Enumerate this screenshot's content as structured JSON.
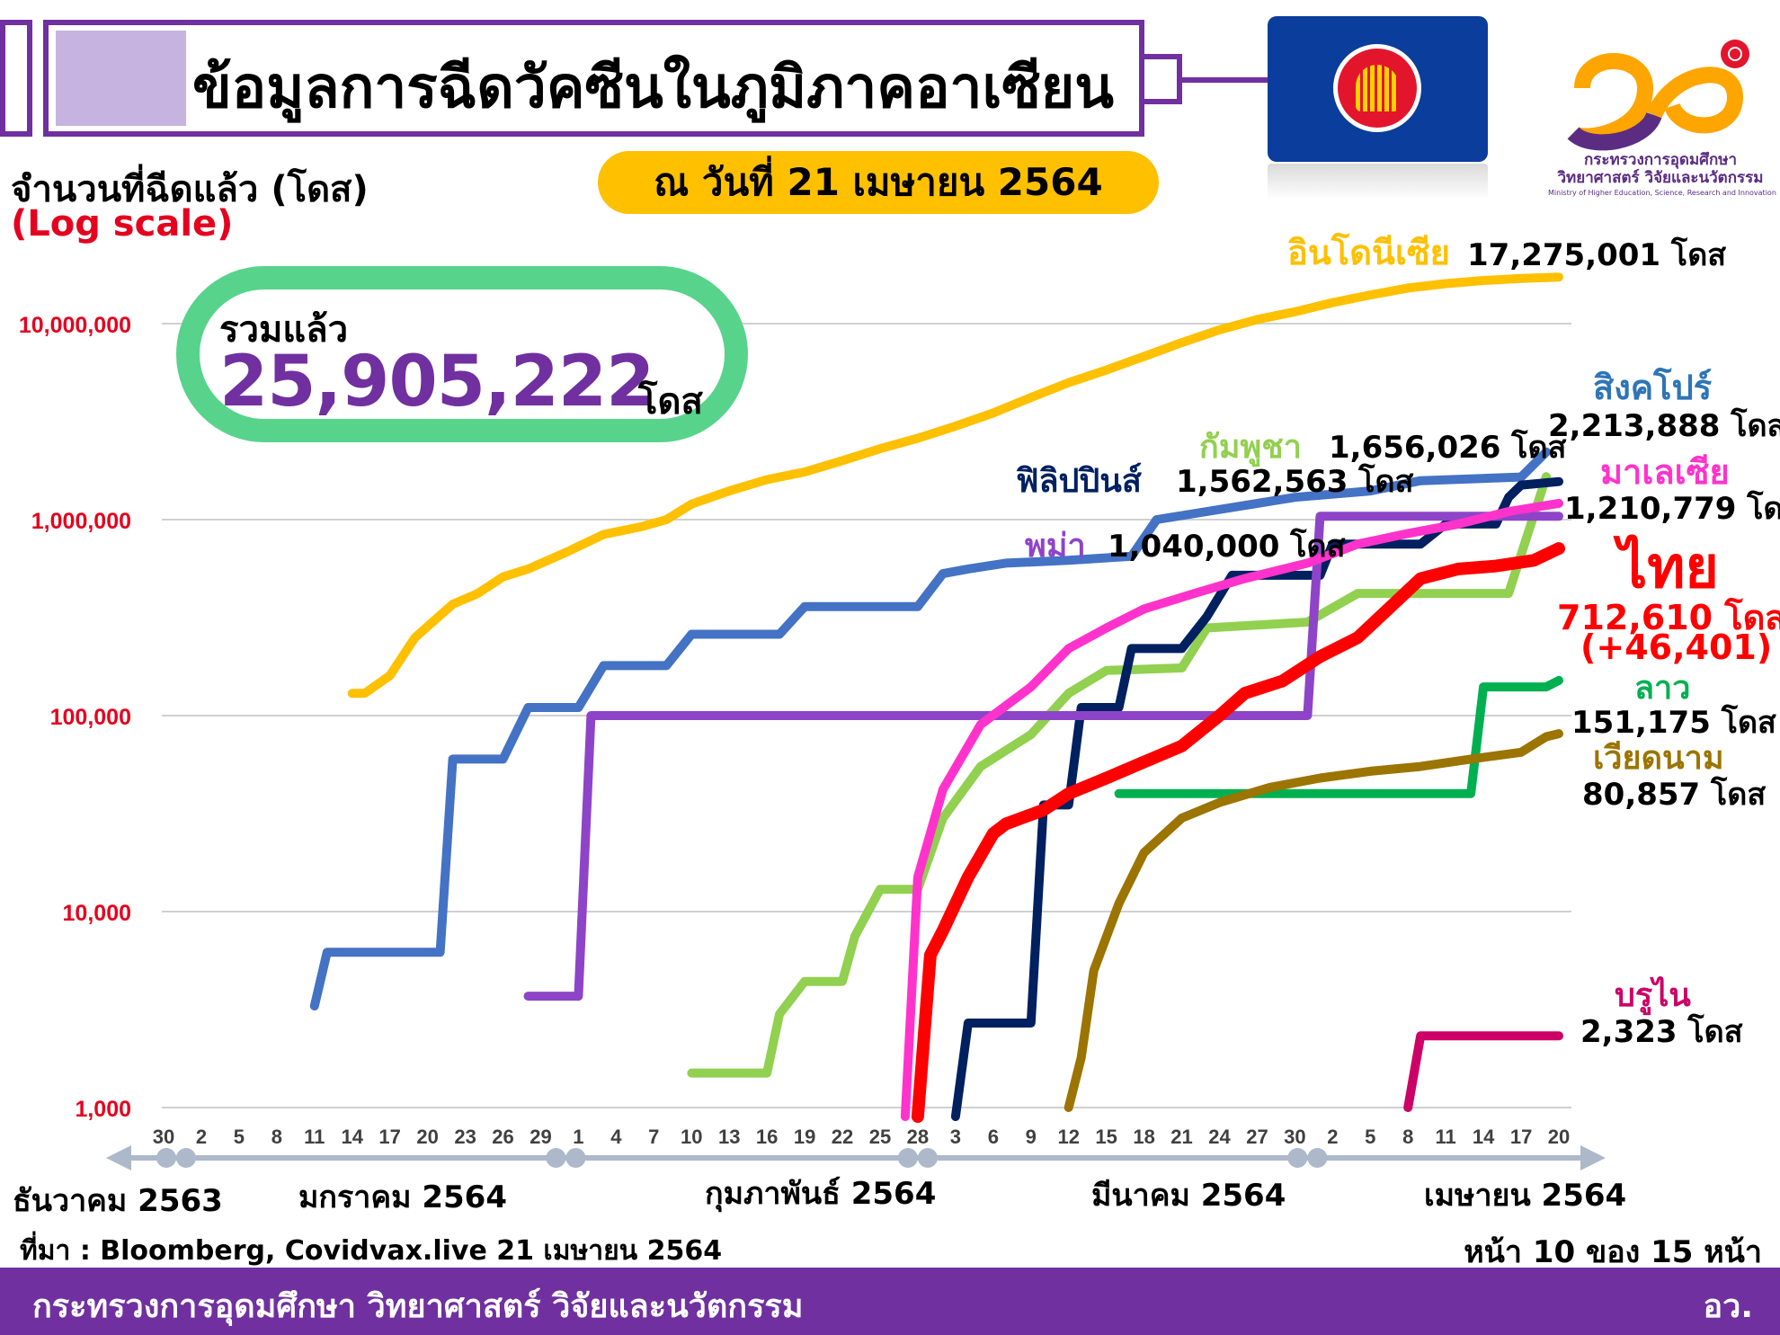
{
  "header": {
    "title": "ข้อมูลการฉีดวัคซีนในภูมิภาคอาเซียน",
    "date": "ณ วันที่ 21 เมษายน 2564"
  },
  "ylabel": "จำนวนที่ฉีดแล้ว (โดส)",
  "ylabel_scale": "(Log scale)",
  "total": {
    "label": "รวมแล้ว",
    "value": "25,905,222",
    "unit": "โดส"
  },
  "logo": {
    "ministry_th_1": "กระทรวงการอุดมศึกษา",
    "ministry_th_2": "วิทยาศาสตร์ วิจัยและนวัตกรรม",
    "ministry_en": "Ministry of Higher Education, Science, Research and Innovation"
  },
  "colors": {
    "indonesia": "#ffc000",
    "singapore": "#4472c4",
    "cambodia": "#92d050",
    "philippines": "#002060",
    "myanmar": "#8e44c8",
    "malaysia": "#ff33cc",
    "thailand": "#ff0000",
    "laos": "#00b050",
    "vietnam": "#9c7400",
    "brunei": "#cc0066"
  },
  "chart_data": {
    "type": "line",
    "y_scale": "log",
    "ylim": [
      1000,
      20000000
    ],
    "y_ticks": [
      1000,
      10000,
      100000,
      1000000,
      10000000
    ],
    "y_tick_labels": [
      "1,000",
      "10,000",
      "100,000",
      "1,000,000",
      "10,000,000"
    ],
    "x_start": "2020-12-30",
    "x_end": "2021-04-21",
    "x_ticks": [
      {
        "date": "2020-12-30",
        "label": "30"
      },
      {
        "date": "2021-01-02",
        "label": "2"
      },
      {
        "date": "2021-01-05",
        "label": "5"
      },
      {
        "date": "2021-01-08",
        "label": "8"
      },
      {
        "date": "2021-01-11",
        "label": "11"
      },
      {
        "date": "2021-01-14",
        "label": "14"
      },
      {
        "date": "2021-01-17",
        "label": "17"
      },
      {
        "date": "2021-01-20",
        "label": "20"
      },
      {
        "date": "2021-01-23",
        "label": "23"
      },
      {
        "date": "2021-01-26",
        "label": "26"
      },
      {
        "date": "2021-01-29",
        "label": "29"
      },
      {
        "date": "2021-02-01",
        "label": "1"
      },
      {
        "date": "2021-02-04",
        "label": "4"
      },
      {
        "date": "2021-02-07",
        "label": "7"
      },
      {
        "date": "2021-02-10",
        "label": "10"
      },
      {
        "date": "2021-02-13",
        "label": "13"
      },
      {
        "date": "2021-02-16",
        "label": "16"
      },
      {
        "date": "2021-02-19",
        "label": "19"
      },
      {
        "date": "2021-02-22",
        "label": "22"
      },
      {
        "date": "2021-02-25",
        "label": "25"
      },
      {
        "date": "2021-02-28",
        "label": "28"
      },
      {
        "date": "2021-03-03",
        "label": "3"
      },
      {
        "date": "2021-03-06",
        "label": "6"
      },
      {
        "date": "2021-03-09",
        "label": "9"
      },
      {
        "date": "2021-03-12",
        "label": "12"
      },
      {
        "date": "2021-03-15",
        "label": "15"
      },
      {
        "date": "2021-03-18",
        "label": "18"
      },
      {
        "date": "2021-03-21",
        "label": "21"
      },
      {
        "date": "2021-03-24",
        "label": "24"
      },
      {
        "date": "2021-03-27",
        "label": "27"
      },
      {
        "date": "2021-03-30",
        "label": "30"
      },
      {
        "date": "2021-04-02",
        "label": "2"
      },
      {
        "date": "2021-04-05",
        "label": "5"
      },
      {
        "date": "2021-04-08",
        "label": "8"
      },
      {
        "date": "2021-04-11",
        "label": "11"
      },
      {
        "date": "2021-04-14",
        "label": "14"
      },
      {
        "date": "2021-04-17",
        "label": "17"
      },
      {
        "date": "2021-04-20",
        "label": "20"
      }
    ],
    "months": [
      {
        "label": "ธันวาคม 2563",
        "date": "2020-12-30"
      },
      {
        "label": "มกราคม 2564",
        "date": "2021-01-16"
      },
      {
        "label": "กุมภาพันธ์ 2564",
        "date": "2021-02-14"
      },
      {
        "label": "มีนาคม 2564",
        "date": "2021-03-18"
      },
      {
        "label": "เมษายน 2564",
        "date": "2021-04-15"
      }
    ],
    "month_boundaries": [
      "2020-12-31",
      "2021-01-31",
      "2021-02-28",
      "2021-03-31"
    ],
    "series": [
      {
        "key": "indonesia",
        "name": "อินโดนีเซีย",
        "value_label": "17,275,001 โดส",
        "final": 17275001,
        "points": [
          [
            "2021-01-14",
            130000
          ],
          [
            "2021-01-15",
            130000
          ],
          [
            "2021-01-17",
            160000
          ],
          [
            "2021-01-19",
            250000
          ],
          [
            "2021-01-22",
            370000
          ],
          [
            "2021-01-24",
            420000
          ],
          [
            "2021-01-26",
            510000
          ],
          [
            "2021-01-28",
            560000
          ],
          [
            "2021-01-31",
            680000
          ],
          [
            "2021-02-03",
            840000
          ],
          [
            "2021-02-06",
            920000
          ],
          [
            "2021-02-08",
            1000000
          ],
          [
            "2021-02-10",
            1200000
          ],
          [
            "2021-02-13",
            1400000
          ],
          [
            "2021-02-16",
            1600000
          ],
          [
            "2021-02-19",
            1750000
          ],
          [
            "2021-02-22",
            2000000
          ],
          [
            "2021-02-25",
            2300000
          ],
          [
            "2021-02-28",
            2600000
          ],
          [
            "2021-03-03",
            3000000
          ],
          [
            "2021-03-06",
            3500000
          ],
          [
            "2021-03-09",
            4200000
          ],
          [
            "2021-03-12",
            5000000
          ],
          [
            "2021-03-15",
            5800000
          ],
          [
            "2021-03-18",
            6800000
          ],
          [
            "2021-03-21",
            8000000
          ],
          [
            "2021-03-24",
            9300000
          ],
          [
            "2021-03-27",
            10500000
          ],
          [
            "2021-03-30",
            11500000
          ],
          [
            "2021-04-02",
            12800000
          ],
          [
            "2021-04-05",
            14000000
          ],
          [
            "2021-04-08",
            15200000
          ],
          [
            "2021-04-11",
            16000000
          ],
          [
            "2021-04-14",
            16600000
          ],
          [
            "2021-04-17",
            17000000
          ],
          [
            "2021-04-20",
            17275001
          ]
        ]
      },
      {
        "key": "singapore",
        "name": "สิงคโปร์",
        "value_label": "2,213,888 โดส",
        "final": 2213888,
        "points": [
          [
            "2021-01-11",
            3300
          ],
          [
            "2021-01-12",
            6200
          ],
          [
            "2021-01-21",
            6200
          ],
          [
            "2021-01-22",
            60000
          ],
          [
            "2021-01-26",
            60000
          ],
          [
            "2021-01-28",
            110000
          ],
          [
            "2021-02-01",
            110000
          ],
          [
            "2021-02-03",
            180000
          ],
          [
            "2021-02-08",
            180000
          ],
          [
            "2021-02-10",
            260000
          ],
          [
            "2021-02-17",
            260000
          ],
          [
            "2021-02-19",
            360000
          ],
          [
            "2021-02-28",
            360000
          ],
          [
            "2021-03-02",
            530000
          ],
          [
            "2021-03-04",
            560000
          ],
          [
            "2021-03-07",
            600000
          ],
          [
            "2021-03-12",
            620000
          ],
          [
            "2021-03-17",
            650000
          ],
          [
            "2021-03-19",
            1000000
          ],
          [
            "2021-03-23",
            1100000
          ],
          [
            "2021-03-30",
            1300000
          ],
          [
            "2021-04-05",
            1400000
          ],
          [
            "2021-04-09",
            1580000
          ],
          [
            "2021-04-17",
            1650000
          ],
          [
            "2021-04-19",
            2213888
          ]
        ]
      },
      {
        "key": "cambodia",
        "name": "กัมพูชา",
        "value_label": "1,656,026 โดส",
        "final": 1656026,
        "points": [
          [
            "2021-02-10",
            1500
          ],
          [
            "2021-02-16",
            1500
          ],
          [
            "2021-02-17",
            3000
          ],
          [
            "2021-02-19",
            4400
          ],
          [
            "2021-02-22",
            4400
          ],
          [
            "2021-02-23",
            7500
          ],
          [
            "2021-02-25",
            13000
          ],
          [
            "2021-02-28",
            13000
          ],
          [
            "2021-03-02",
            30000
          ],
          [
            "2021-03-05",
            55000
          ],
          [
            "2021-03-09",
            80000
          ],
          [
            "2021-03-12",
            130000
          ],
          [
            "2021-03-15",
            170000
          ],
          [
            "2021-03-21",
            175000
          ],
          [
            "2021-03-23",
            280000
          ],
          [
            "2021-03-31",
            300000
          ],
          [
            "2021-04-04",
            420000
          ],
          [
            "2021-04-16",
            420000
          ],
          [
            "2021-04-19",
            1656026
          ]
        ]
      },
      {
        "key": "philippines",
        "name": "ฟิลิปปินส์",
        "value_label": "1,562,563 โดส",
        "final": 1562563,
        "points": [
          [
            "2021-03-03",
            900
          ],
          [
            "2021-03-04",
            2700
          ],
          [
            "2021-03-09",
            2700
          ],
          [
            "2021-03-10",
            35000
          ],
          [
            "2021-03-12",
            35000
          ],
          [
            "2021-03-13",
            110000
          ],
          [
            "2021-03-16",
            110000
          ],
          [
            "2021-03-17",
            220000
          ],
          [
            "2021-03-21",
            220000
          ],
          [
            "2021-03-23",
            320000
          ],
          [
            "2021-03-25",
            520000
          ],
          [
            "2021-04-01",
            520000
          ],
          [
            "2021-04-02",
            750000
          ],
          [
            "2021-04-09",
            750000
          ],
          [
            "2021-04-11",
            950000
          ],
          [
            "2021-04-15",
            950000
          ],
          [
            "2021-04-16",
            1300000
          ],
          [
            "2021-04-17",
            1500000
          ],
          [
            "2021-04-20",
            1562563
          ]
        ]
      },
      {
        "key": "myanmar",
        "name": "พม่า",
        "value_label": "1,040,000 โดส",
        "final": 1040000,
        "points": [
          [
            "2021-01-28",
            3700
          ],
          [
            "2021-02-01",
            3700
          ],
          [
            "2021-02-02",
            100000
          ],
          [
            "2021-03-31",
            100000
          ],
          [
            "2021-04-01",
            1040000
          ],
          [
            "2021-04-20",
            1040000
          ]
        ]
      },
      {
        "key": "malaysia",
        "name": "มาเลเซีย",
        "value_label": "1,210,779 โดส",
        "final": 1210779,
        "points": [
          [
            "2021-02-27",
            900
          ],
          [
            "2021-02-28",
            15000
          ],
          [
            "2021-03-02",
            42000
          ],
          [
            "2021-03-05",
            90000
          ],
          [
            "2021-03-09",
            140000
          ],
          [
            "2021-03-12",
            220000
          ],
          [
            "2021-03-15",
            280000
          ],
          [
            "2021-03-18",
            350000
          ],
          [
            "2021-03-22",
            420000
          ],
          [
            "2021-03-26",
            500000
          ],
          [
            "2021-03-31",
            600000
          ],
          [
            "2021-04-04",
            750000
          ],
          [
            "2021-04-08",
            850000
          ],
          [
            "2021-04-12",
            950000
          ],
          [
            "2021-04-16",
            1100000
          ],
          [
            "2021-04-20",
            1210779
          ]
        ]
      },
      {
        "key": "thailand",
        "name": "ไทย",
        "value_label": "712,610 โดส",
        "extra": "(+46,401)",
        "final": 712610,
        "points": [
          [
            "2021-02-28",
            900
          ],
          [
            "2021-03-01",
            6000
          ],
          [
            "2021-03-02",
            8000
          ],
          [
            "2021-03-04",
            15000
          ],
          [
            "2021-03-06",
            25000
          ],
          [
            "2021-03-07",
            28000
          ],
          [
            "2021-03-10",
            33000
          ],
          [
            "2021-03-12",
            40000
          ],
          [
            "2021-03-15",
            48000
          ],
          [
            "2021-03-18",
            58000
          ],
          [
            "2021-03-21",
            70000
          ],
          [
            "2021-03-24",
            100000
          ],
          [
            "2021-03-26",
            130000
          ],
          [
            "2021-03-29",
            150000
          ],
          [
            "2021-04-01",
            200000
          ],
          [
            "2021-04-04",
            250000
          ],
          [
            "2021-04-06",
            330000
          ],
          [
            "2021-04-09",
            500000
          ],
          [
            "2021-04-12",
            560000
          ],
          [
            "2021-04-15",
            580000
          ],
          [
            "2021-04-18",
            620000
          ],
          [
            "2021-04-20",
            712610
          ]
        ]
      },
      {
        "key": "laos",
        "name": "ลาว",
        "value_label": "151,175 โดส",
        "final": 151175,
        "points": [
          [
            "2021-03-16",
            40000
          ],
          [
            "2021-04-13",
            40000
          ],
          [
            "2021-04-14",
            140000
          ],
          [
            "2021-04-19",
            140000
          ],
          [
            "2021-04-20",
            151175
          ]
        ]
      },
      {
        "key": "vietnam",
        "name": "เวียดนาม",
        "value_label": "80,857 โดส",
        "final": 80857,
        "points": [
          [
            "2021-03-12",
            1000
          ],
          [
            "2021-03-13",
            1800
          ],
          [
            "2021-03-14",
            5000
          ],
          [
            "2021-03-16",
            11000
          ],
          [
            "2021-03-18",
            20000
          ],
          [
            "2021-03-21",
            30000
          ],
          [
            "2021-03-24",
            36000
          ],
          [
            "2021-03-28",
            43000
          ],
          [
            "2021-04-01",
            48000
          ],
          [
            "2021-04-05",
            52000
          ],
          [
            "2021-04-09",
            55000
          ],
          [
            "2021-04-13",
            60000
          ],
          [
            "2021-04-17",
            65000
          ],
          [
            "2021-04-19",
            78000
          ],
          [
            "2021-04-20",
            80857
          ]
        ]
      },
      {
        "key": "brunei",
        "name": "บรูไน",
        "value_label": "2,323 โดส",
        "final": 2323,
        "points": [
          [
            "2021-04-08",
            1000
          ],
          [
            "2021-04-09",
            2323
          ],
          [
            "2021-04-20",
            2323
          ]
        ]
      }
    ]
  },
  "source": "ที่มา : Bloomberg, Covidvax.live 21 เมษายน 2564",
  "page": "หน้า 10 ของ 15 หน้า",
  "footer": {
    "left": "กระทรวงการอุดมศึกษา วิทยาศาสตร์ วิจัยและนวัตกรรม",
    "right": "อว."
  }
}
